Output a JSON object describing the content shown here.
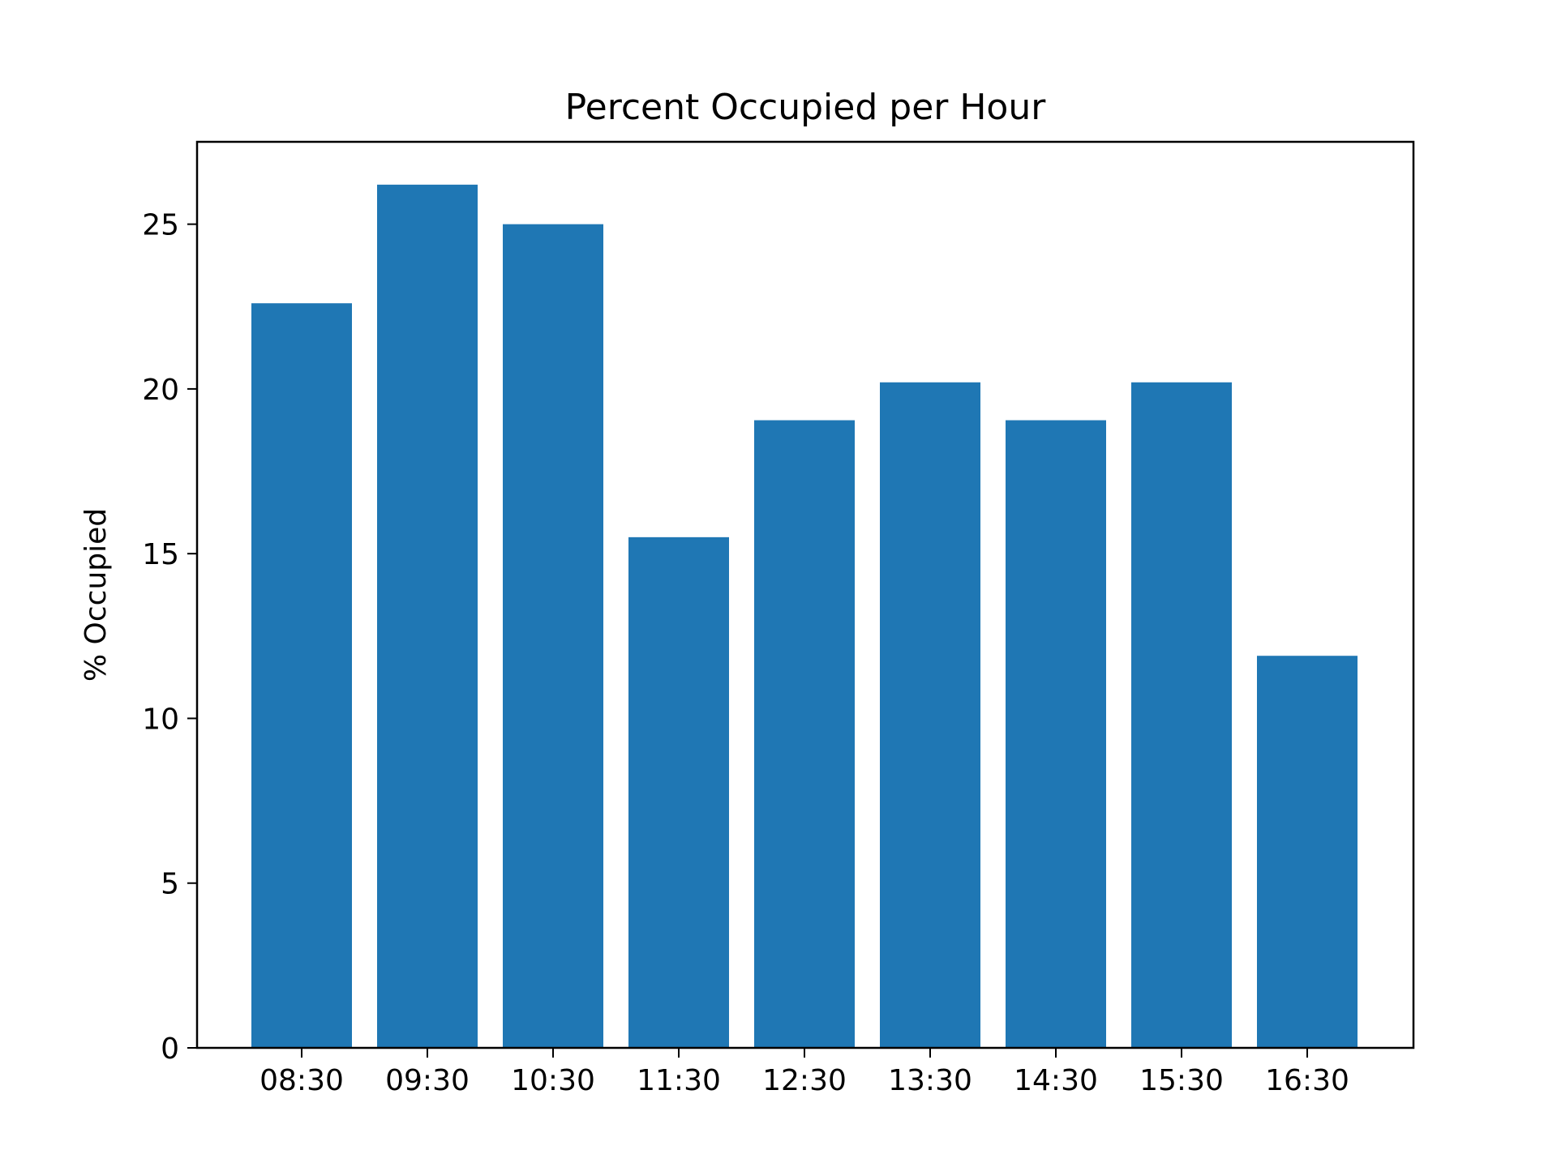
{
  "chart_data": {
    "type": "bar",
    "title": "Percent Occupied per Hour",
    "xlabel": "",
    "ylabel": "% Occupied",
    "categories": [
      "08:30",
      "09:30",
      "10:30",
      "11:30",
      "12:30",
      "13:30",
      "14:30",
      "15:30",
      "16:30"
    ],
    "values": [
      22.6,
      26.2,
      25.0,
      15.5,
      19.05,
      20.2,
      19.05,
      20.2,
      11.9
    ],
    "ylim": [
      0,
      27.5
    ],
    "yticks": [
      0,
      5,
      10,
      15,
      20,
      25
    ],
    "ytick_labels": [
      "0",
      "5",
      "10",
      "15",
      "20",
      "25"
    ],
    "grid": false,
    "bar_color": "#1f77b4"
  }
}
